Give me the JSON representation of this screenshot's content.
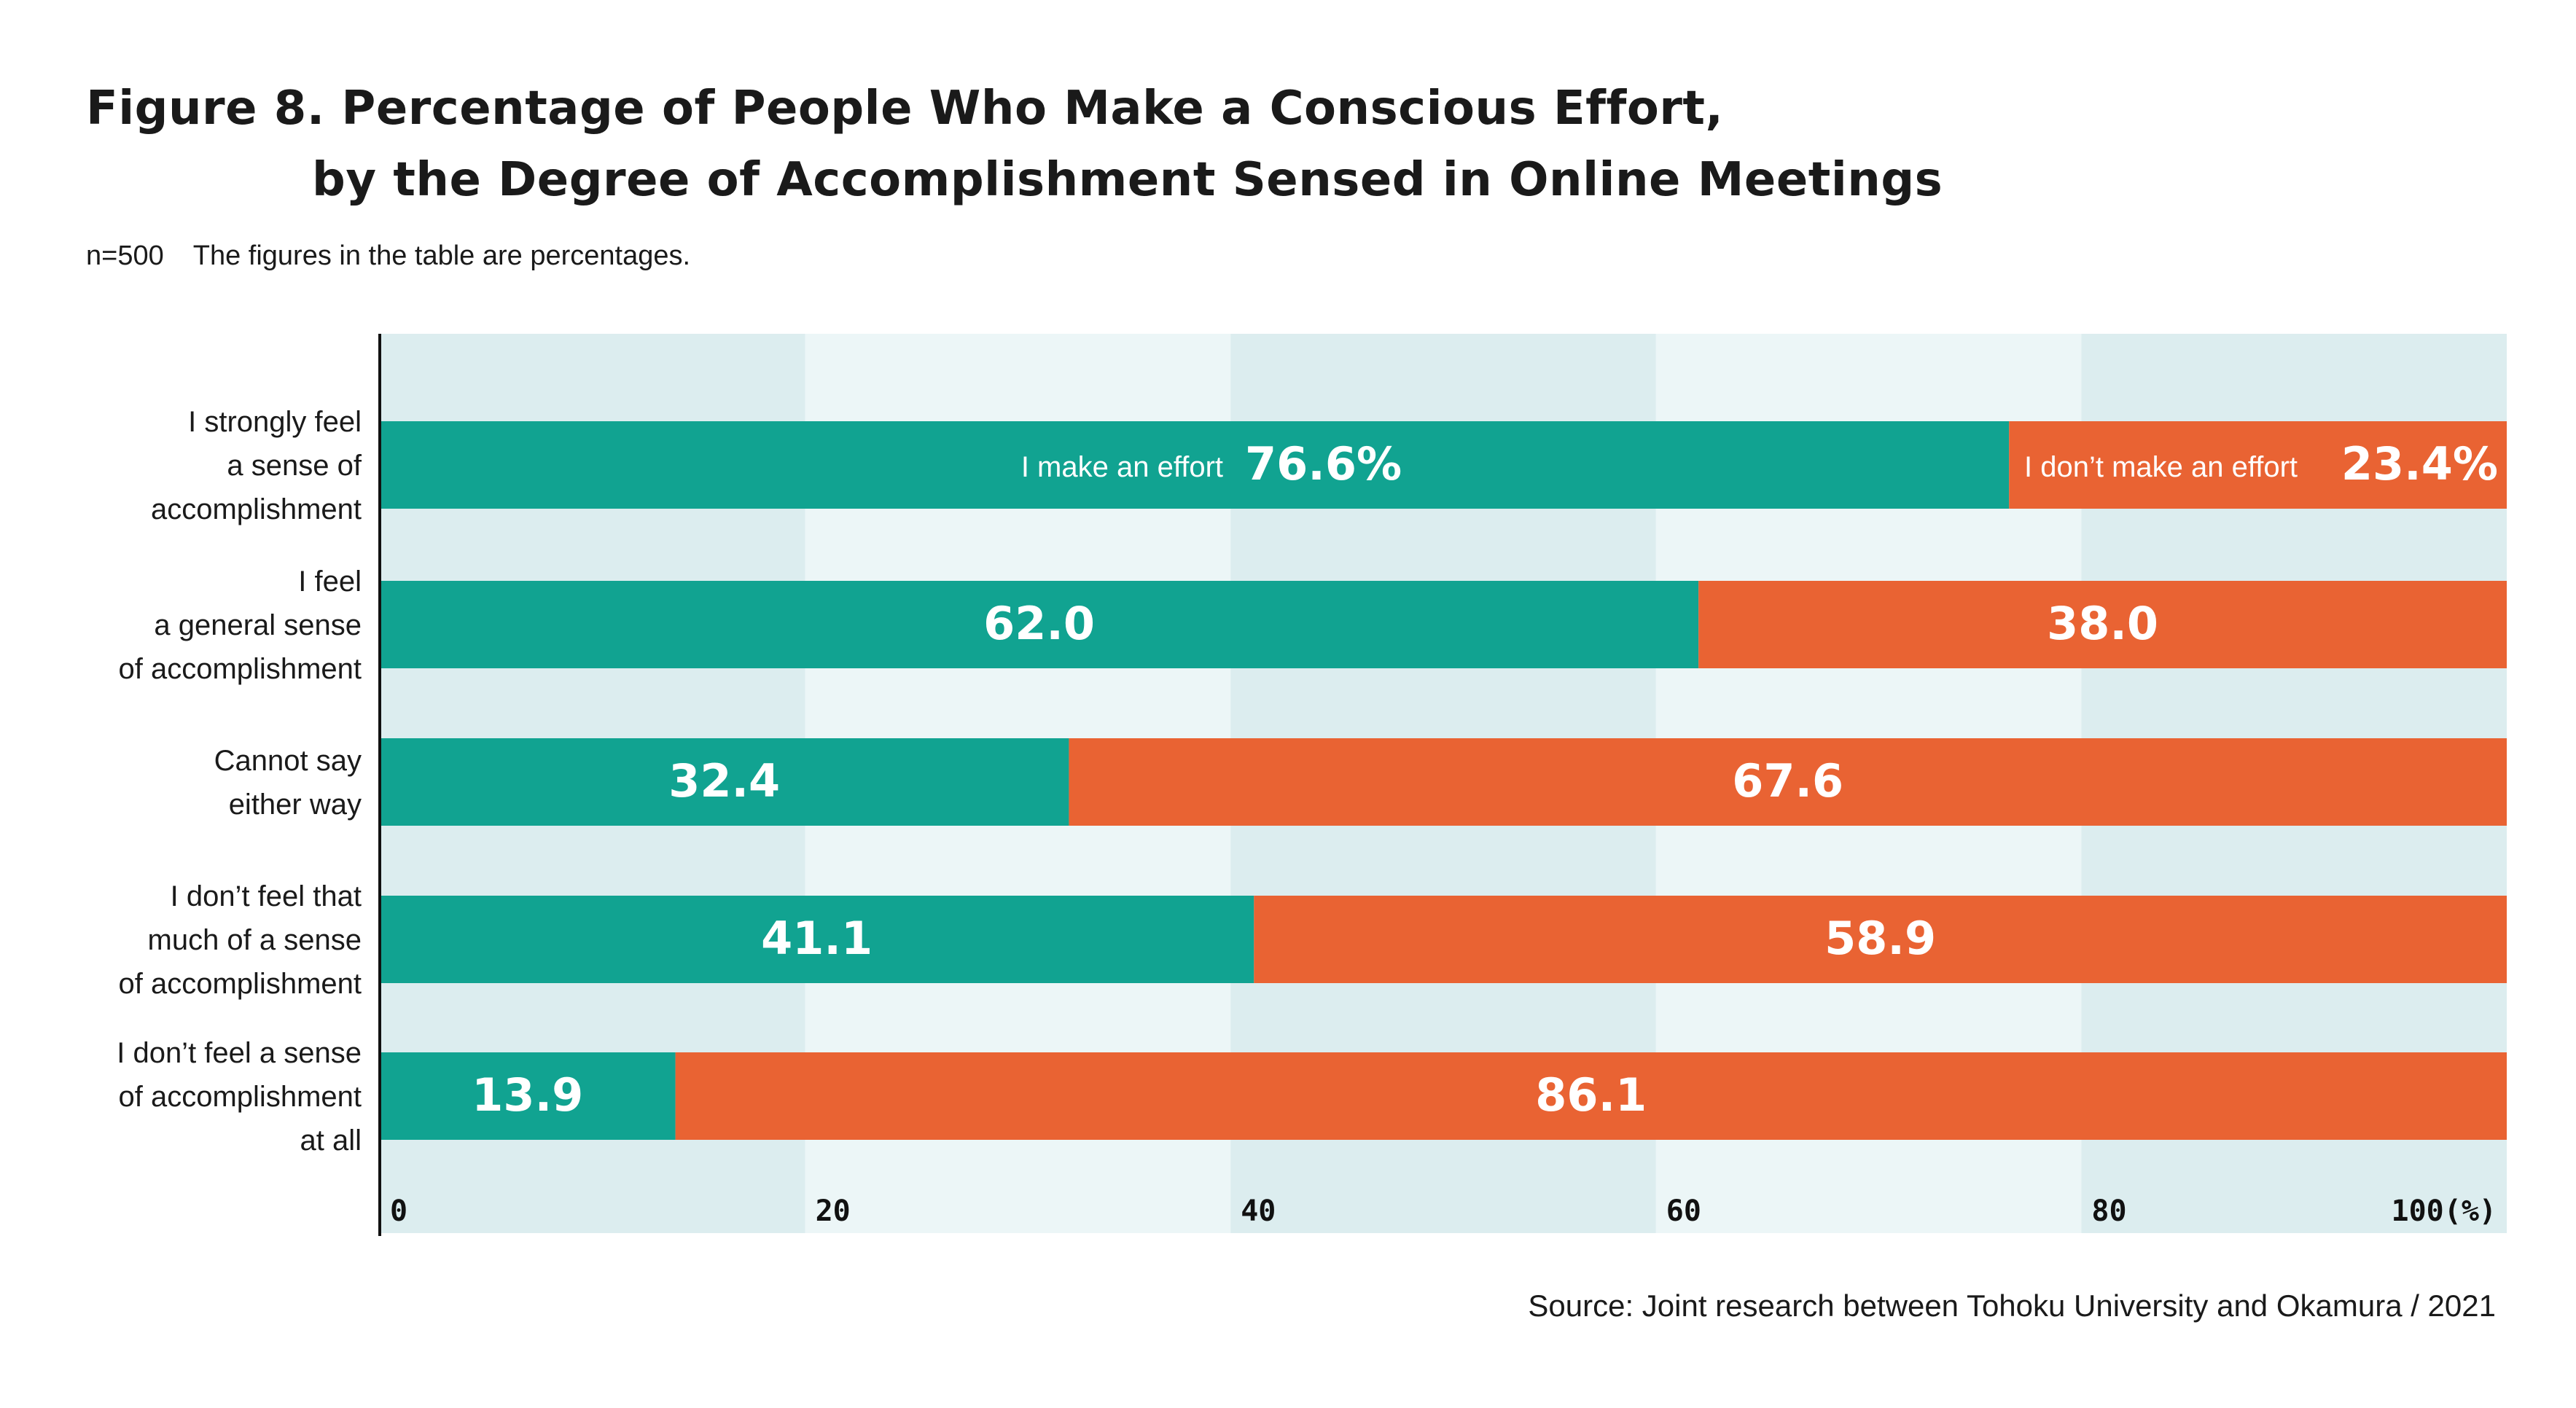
{
  "title": {
    "line1": "Figure 8. Percentage of People Who Make a Conscious Effort,",
    "line2": "by the Degree of Accomplishment Sensed in Online Meetings"
  },
  "subtitle": {
    "n": "n=500",
    "note": "The figures in the table are percentages."
  },
  "source": "Source: Joint research between Tohoku University and Okamura / 2021",
  "colors": {
    "effort": "#11a391",
    "no_effort": "#e96333",
    "band_dark": "#dcedef",
    "band_light": "#ecf6f7"
  },
  "chart_data": {
    "type": "bar",
    "orientation": "horizontal",
    "stacked": true,
    "categories": [
      [
        "I strongly feel",
        "a sense of",
        "accomplishment"
      ],
      [
        "I feel",
        "a general sense",
        "of accomplishment"
      ],
      [
        "Cannot say",
        "either way"
      ],
      [
        "I don’t feel that",
        "much of a sense",
        "of accomplishment"
      ],
      [
        "I don’t feel a sense",
        "of accomplishment",
        "at all"
      ]
    ],
    "series": [
      {
        "name": "I make an effort",
        "values": [
          76.6,
          62.0,
          32.4,
          41.1,
          13.9
        ]
      },
      {
        "name": "I don’t make an effort",
        "values": [
          23.4,
          38.0,
          67.6,
          58.9,
          86.1
        ]
      }
    ],
    "value_labels": [
      [
        "76.6%",
        "62.0",
        "32.4",
        "41.1",
        "13.9"
      ],
      [
        "23.4%",
        "38.0",
        "67.6",
        "58.9",
        "86.1"
      ]
    ],
    "xlim": [
      0,
      100
    ],
    "xticks": [
      "0",
      "20",
      "40",
      "60",
      "80",
      "100(%)"
    ],
    "legend": "inline-first-bar"
  }
}
